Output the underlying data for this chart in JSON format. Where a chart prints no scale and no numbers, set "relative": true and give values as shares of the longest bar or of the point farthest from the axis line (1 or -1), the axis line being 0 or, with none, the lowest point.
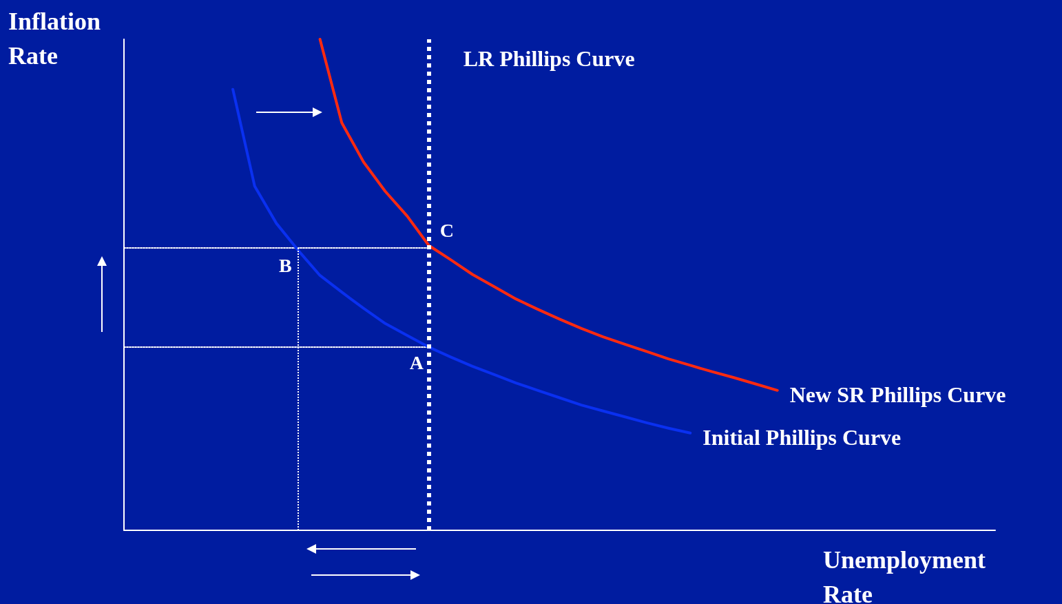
{
  "chart_data": {
    "type": "line",
    "relative": true,
    "xlabel": "Unemployment Rate",
    "ylabel": "Inflation Rate",
    "grid": false,
    "legend": false,
    "marker": "none",
    "categories": [
      null,
      null,
      null,
      null,
      null,
      null,
      null,
      null,
      null,
      null,
      null,
      null,
      null,
      null,
      null,
      null,
      null,
      null,
      null,
      null,
      null,
      null,
      null,
      null,
      null,
      null,
      null,
      null,
      null,
      null,
      null,
      null,
      null,
      null,
      null,
      null,
      null,
      null,
      null,
      null,
      null
    ],
    "series": [
      {
        "name": "Initial Phillips Curve",
        "color": "#0a30f0",
        "values": [
          null,
          null,
          null,
          null,
          null,
          0.898,
          0.701,
          0.625,
          0.57,
          0.519,
          0.485,
          0.452,
          0.421,
          0.397,
          0.373,
          0.353,
          0.334,
          0.317,
          0.3,
          0.285,
          0.27,
          0.255,
          0.243,
          0.231,
          0.219,
          0.208,
          0.198,
          null,
          null,
          null,
          null,
          null,
          null,
          null,
          null,
          null,
          null,
          null,
          null,
          null,
          null
        ]
      },
      {
        "name": "New SR Phillips Curve",
        "color": "#ff2a10",
        "values": [
          null,
          null,
          null,
          null,
          null,
          null,
          null,
          null,
          null,
          1.0,
          0.83,
          0.75,
          0.69,
          0.64,
          0.58,
          0.551,
          0.521,
          0.496,
          0.471,
          0.45,
          0.43,
          0.411,
          0.394,
          0.379,
          0.364,
          0.349,
          0.336,
          0.323,
          0.311,
          0.298,
          0.285,
          null,
          null,
          null,
          null,
          null,
          null,
          null,
          null,
          null,
          null
        ]
      },
      {
        "color": "#ffffff",
        "line_style": "dotted",
        "values": [
          0.575,
          0.575,
          0.575,
          0.575,
          0.575,
          0.575,
          0.575,
          0.575,
          0.575,
          0.575,
          0.575,
          0.575,
          0.575,
          0.575,
          0.575,
          null,
          null,
          null,
          null,
          null,
          null,
          null,
          null,
          null,
          null,
          null,
          null,
          null,
          null,
          null,
          null,
          null,
          null,
          null,
          null,
          null,
          null,
          null,
          null,
          null,
          null
        ]
      },
      {
        "color": "#ffffff",
        "line_style": "dotted",
        "values": [
          0.373,
          0.373,
          0.373,
          0.373,
          0.373,
          0.373,
          0.373,
          0.373,
          0.373,
          0.373,
          0.373,
          0.373,
          0.373,
          0.373,
          0.373,
          null,
          null,
          null,
          null,
          null,
          null,
          null,
          null,
          null,
          null,
          null,
          null,
          null,
          null,
          null,
          null,
          null,
          null,
          null,
          null,
          null,
          null,
          null,
          null,
          null,
          null
        ]
      }
    ],
    "annotations": [
      {
        "text": "A",
        "y": 0.373
      },
      {
        "text": "B",
        "y": 0.57
      },
      "LR Phillips Curve",
      "C"
    ]
  }
}
